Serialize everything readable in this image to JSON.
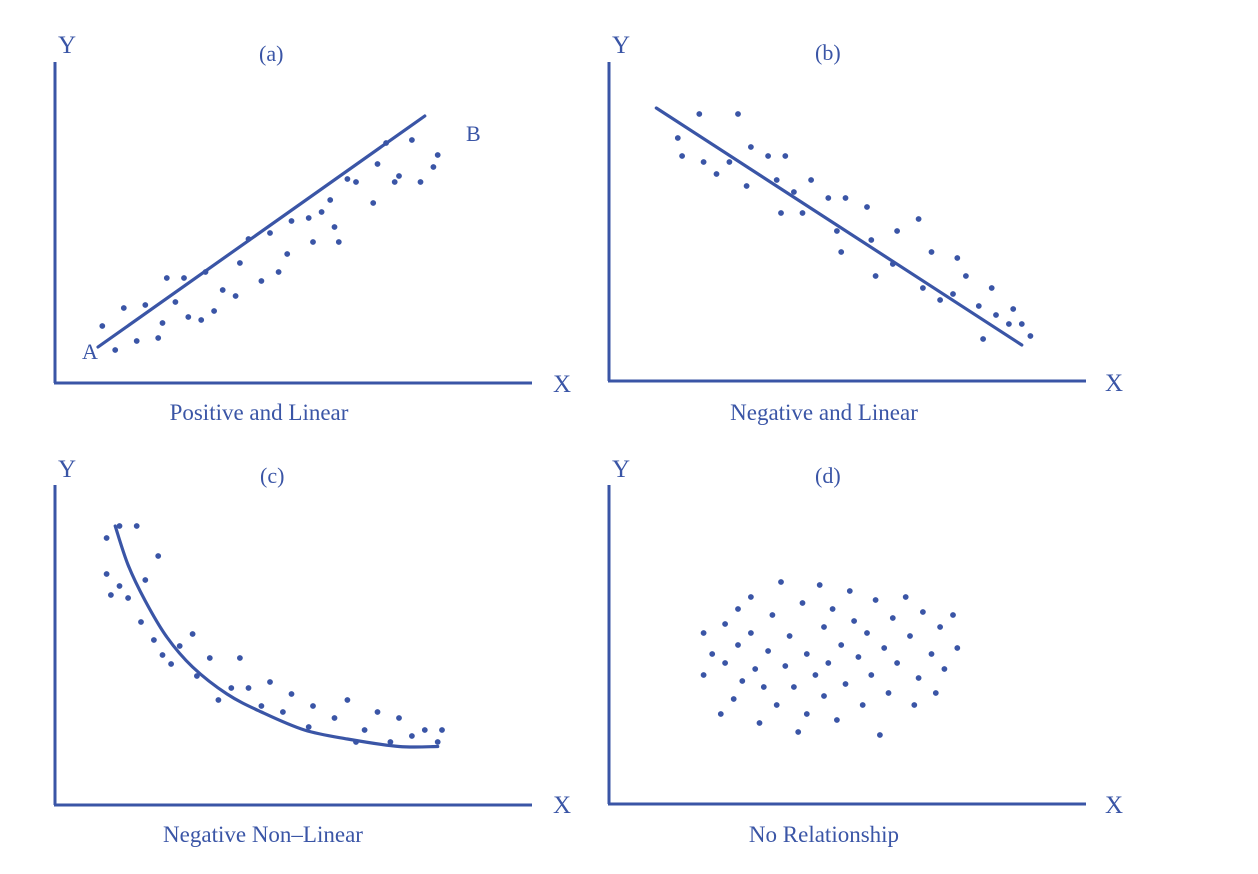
{
  "colors": {
    "ink": "#3a55a6",
    "background": "#ffffff"
  },
  "chart_data": [
    {
      "type": "scatter",
      "panel_label": "(a)",
      "caption": "Positive and Linear",
      "xlabel": "X",
      "ylabel": "Y",
      "xlim": [
        0,
        10
      ],
      "ylim": [
        0,
        10
      ],
      "trend": {
        "kind": "line",
        "x": [
          1,
          8.6
        ],
        "y": [
          1.2,
          8.9
        ],
        "start_label": "A",
        "end_label": "B"
      },
      "points": [
        [
          1.1,
          1.9
        ],
        [
          1.4,
          1.1
        ],
        [
          1.6,
          2.5
        ],
        [
          1.9,
          1.4
        ],
        [
          2.1,
          2.6
        ],
        [
          2.4,
          1.5
        ],
        [
          2.5,
          2.0
        ],
        [
          2.6,
          3.5
        ],
        [
          2.8,
          2.7
        ],
        [
          3.0,
          3.5
        ],
        [
          3.1,
          2.2
        ],
        [
          3.4,
          2.1
        ],
        [
          3.5,
          3.7
        ],
        [
          3.7,
          2.4
        ],
        [
          3.9,
          3.1
        ],
        [
          4.2,
          2.9
        ],
        [
          4.3,
          4.0
        ],
        [
          4.5,
          4.8
        ],
        [
          4.8,
          3.4
        ],
        [
          5.0,
          5.0
        ],
        [
          5.2,
          3.7
        ],
        [
          5.4,
          4.3
        ],
        [
          5.5,
          5.4
        ],
        [
          5.9,
          5.5
        ],
        [
          6.0,
          4.7
        ],
        [
          6.2,
          5.7
        ],
        [
          6.4,
          6.1
        ],
        [
          6.5,
          5.2
        ],
        [
          6.6,
          4.7
        ],
        [
          6.8,
          6.8
        ],
        [
          7.0,
          6.7
        ],
        [
          7.4,
          6.0
        ],
        [
          7.5,
          7.3
        ],
        [
          7.7,
          8.0
        ],
        [
          7.9,
          6.7
        ],
        [
          8.0,
          6.9
        ],
        [
          8.3,
          8.1
        ],
        [
          8.5,
          6.7
        ],
        [
          8.8,
          7.2
        ],
        [
          8.9,
          7.6
        ]
      ]
    },
    {
      "type": "scatter",
      "panel_label": "(b)",
      "caption": "Negative and Linear",
      "xlabel": "X",
      "ylabel": "Y",
      "xlim": [
        0,
        10
      ],
      "ylim": [
        0,
        10
      ],
      "trend": {
        "kind": "line",
        "x": [
          1.1,
          9.6
        ],
        "y": [
          9.1,
          1.2
        ]
      },
      "points": [
        [
          1.6,
          8.1
        ],
        [
          1.7,
          7.5
        ],
        [
          2.1,
          8.9
        ],
        [
          2.2,
          7.3
        ],
        [
          2.5,
          6.9
        ],
        [
          2.8,
          7.3
        ],
        [
          3.0,
          8.9
        ],
        [
          3.2,
          6.5
        ],
        [
          3.3,
          7.8
        ],
        [
          3.7,
          7.5
        ],
        [
          3.9,
          6.7
        ],
        [
          4.0,
          5.6
        ],
        [
          4.1,
          7.5
        ],
        [
          4.3,
          6.3
        ],
        [
          4.5,
          5.6
        ],
        [
          4.7,
          6.7
        ],
        [
          5.1,
          6.1
        ],
        [
          5.3,
          5.0
        ],
        [
          5.4,
          4.3
        ],
        [
          5.5,
          6.1
        ],
        [
          6.0,
          5.8
        ],
        [
          6.1,
          4.7
        ],
        [
          6.2,
          3.5
        ],
        [
          6.6,
          3.9
        ],
        [
          6.7,
          5.0
        ],
        [
          7.2,
          5.4
        ],
        [
          7.3,
          3.1
        ],
        [
          7.5,
          4.3
        ],
        [
          7.7,
          2.7
        ],
        [
          8.0,
          2.9
        ],
        [
          8.1,
          4.1
        ],
        [
          8.3,
          3.5
        ],
        [
          8.6,
          2.5
        ],
        [
          8.7,
          1.4
        ],
        [
          8.9,
          3.1
        ],
        [
          9.0,
          2.2
        ],
        [
          9.3,
          1.9
        ],
        [
          9.4,
          2.4
        ],
        [
          9.6,
          1.9
        ],
        [
          9.8,
          1.5
        ]
      ]
    },
    {
      "type": "scatter",
      "panel_label": "(c)",
      "caption": "Negative Non–Linear",
      "xlabel": "X",
      "ylabel": "Y",
      "xlim": [
        0,
        10
      ],
      "ylim": [
        0,
        10
      ],
      "trend": {
        "kind": "curve",
        "x": [
          1.4,
          1.7,
          2.1,
          2.6,
          3.2,
          4.0,
          4.8,
          5.8,
          6.8,
          8.0,
          8.9
        ],
        "y": [
          9.3,
          8.0,
          6.8,
          5.6,
          4.6,
          3.7,
          3.1,
          2.5,
          2.2,
          1.95,
          1.95
        ]
      },
      "points": [
        [
          1.2,
          7.7
        ],
        [
          1.2,
          8.9
        ],
        [
          1.3,
          7.0
        ],
        [
          1.5,
          9.3
        ],
        [
          1.5,
          7.3
        ],
        [
          1.7,
          6.9
        ],
        [
          1.9,
          9.3
        ],
        [
          2.0,
          6.1
        ],
        [
          2.1,
          7.5
        ],
        [
          2.3,
          5.5
        ],
        [
          2.4,
          8.3
        ],
        [
          2.5,
          5.0
        ],
        [
          2.7,
          4.7
        ],
        [
          2.9,
          5.3
        ],
        [
          3.2,
          5.7
        ],
        [
          3.3,
          4.3
        ],
        [
          3.6,
          4.9
        ],
        [
          3.8,
          3.5
        ],
        [
          4.1,
          3.9
        ],
        [
          4.3,
          4.9
        ],
        [
          4.5,
          3.9
        ],
        [
          4.8,
          3.3
        ],
        [
          5.0,
          4.1
        ],
        [
          5.3,
          3.1
        ],
        [
          5.5,
          3.7
        ],
        [
          5.9,
          2.6
        ],
        [
          6.0,
          3.3
        ],
        [
          6.5,
          2.9
        ],
        [
          6.8,
          3.5
        ],
        [
          7.0,
          2.1
        ],
        [
          7.2,
          2.5
        ],
        [
          7.5,
          3.1
        ],
        [
          7.8,
          2.1
        ],
        [
          8.0,
          2.9
        ],
        [
          8.3,
          2.3
        ],
        [
          8.6,
          2.5
        ],
        [
          8.9,
          2.1
        ],
        [
          9.0,
          2.5
        ]
      ]
    },
    {
      "type": "scatter",
      "panel_label": "(d)",
      "caption": "No Relationship",
      "xlabel": "X",
      "ylabel": "Y",
      "xlim": [
        0,
        10
      ],
      "ylim": [
        0,
        10
      ],
      "points": [
        [
          2.2,
          5.7
        ],
        [
          2.2,
          4.3
        ],
        [
          2.4,
          5.0
        ],
        [
          2.6,
          3.0
        ],
        [
          2.7,
          6.0
        ],
        [
          2.7,
          4.7
        ],
        [
          2.9,
          3.5
        ],
        [
          3.0,
          5.3
        ],
        [
          3.0,
          6.5
        ],
        [
          3.1,
          4.1
        ],
        [
          3.3,
          6.9
        ],
        [
          3.3,
          5.7
        ],
        [
          3.4,
          4.5
        ],
        [
          3.5,
          2.7
        ],
        [
          3.6,
          3.9
        ],
        [
          3.7,
          5.1
        ],
        [
          3.8,
          6.3
        ],
        [
          3.9,
          3.3
        ],
        [
          4.0,
          7.4
        ],
        [
          4.1,
          4.6
        ],
        [
          4.2,
          5.6
        ],
        [
          4.3,
          3.9
        ],
        [
          4.4,
          2.4
        ],
        [
          4.5,
          6.7
        ],
        [
          4.6,
          5.0
        ],
        [
          4.6,
          3.0
        ],
        [
          4.8,
          4.3
        ],
        [
          4.9,
          7.3
        ],
        [
          5.0,
          5.9
        ],
        [
          5.0,
          3.6
        ],
        [
          5.1,
          4.7
        ],
        [
          5.2,
          6.5
        ],
        [
          5.3,
          2.8
        ],
        [
          5.4,
          5.3
        ],
        [
          5.5,
          4.0
        ],
        [
          5.6,
          7.1
        ],
        [
          5.7,
          6.1
        ],
        [
          5.8,
          4.9
        ],
        [
          5.9,
          3.3
        ],
        [
          6.0,
          5.7
        ],
        [
          6.1,
          4.3
        ],
        [
          6.2,
          6.8
        ],
        [
          6.3,
          2.3
        ],
        [
          6.4,
          5.2
        ],
        [
          6.5,
          3.7
        ],
        [
          6.6,
          6.2
        ],
        [
          6.7,
          4.7
        ],
        [
          6.9,
          6.9
        ],
        [
          7.0,
          5.6
        ],
        [
          7.1,
          3.3
        ],
        [
          7.2,
          4.2
        ],
        [
          7.3,
          6.4
        ],
        [
          7.5,
          5.0
        ],
        [
          7.6,
          3.7
        ],
        [
          7.7,
          5.9
        ],
        [
          7.8,
          4.5
        ],
        [
          8.0,
          6.3
        ],
        [
          8.1,
          5.2
        ]
      ]
    }
  ]
}
